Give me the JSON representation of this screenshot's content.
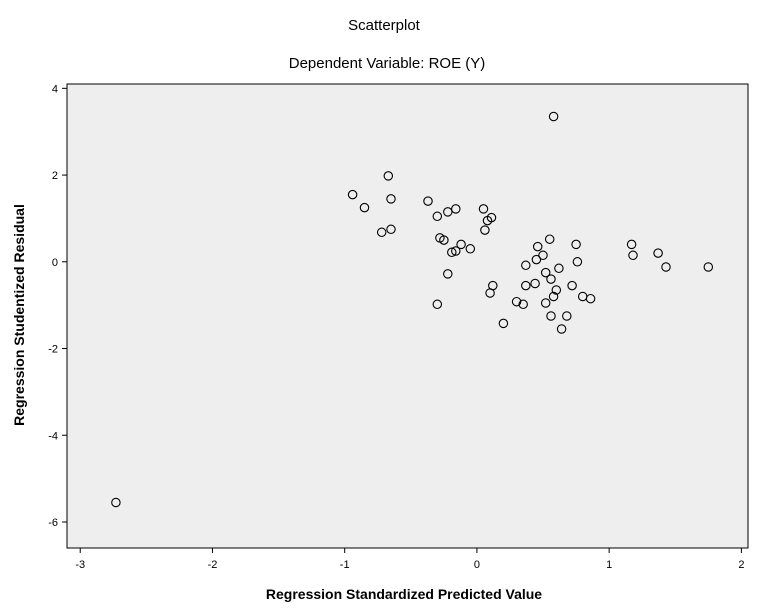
{
  "chart_data": {
    "type": "scatter",
    "title": "Scatterplot",
    "subtitle": "Dependent Variable: ROE (Y)",
    "xlabel": "Regression Standardized Predicted Value",
    "ylabel": "Regression Studentized Residual",
    "xlim": [
      -3.1,
      2.05
    ],
    "ylim": [
      -6.6,
      4.1
    ],
    "xticks": [
      "-3",
      "-2",
      "-1",
      "0",
      "1",
      "2"
    ],
    "yticks": [
      "4",
      "2",
      "0",
      "-2",
      "-4",
      "-6"
    ],
    "xtick_values": [
      -3,
      -2,
      -1,
      0,
      1,
      2
    ],
    "ytick_values": [
      4,
      2,
      0,
      -2,
      -4,
      -6
    ],
    "grid": false,
    "colors": {
      "plot_background": "#eeeeee",
      "marker": "#000000"
    },
    "points": [
      {
        "x": -2.73,
        "y": -5.55
      },
      {
        "x": -0.94,
        "y": 1.55
      },
      {
        "x": -0.67,
        "y": 1.98
      },
      {
        "x": -0.85,
        "y": 1.25
      },
      {
        "x": -0.65,
        "y": 1.45
      },
      {
        "x": -0.72,
        "y": 0.68
      },
      {
        "x": -0.65,
        "y": 0.75
      },
      {
        "x": -0.37,
        "y": 1.4
      },
      {
        "x": -0.3,
        "y": 1.05
      },
      {
        "x": -0.22,
        "y": 1.15
      },
      {
        "x": -0.16,
        "y": 1.22
      },
      {
        "x": -0.28,
        "y": 0.55
      },
      {
        "x": -0.25,
        "y": 0.5
      },
      {
        "x": -0.16,
        "y": 0.25
      },
      {
        "x": -0.12,
        "y": 0.4
      },
      {
        "x": -0.19,
        "y": 0.22
      },
      {
        "x": -0.05,
        "y": 0.3
      },
      {
        "x": 0.05,
        "y": 1.22
      },
      {
        "x": 0.11,
        "y": 1.02
      },
      {
        "x": 0.08,
        "y": 0.95
      },
      {
        "x": 0.06,
        "y": 0.73
      },
      {
        "x": -0.22,
        "y": -0.28
      },
      {
        "x": -0.3,
        "y": -0.98
      },
      {
        "x": 0.12,
        "y": -0.55
      },
      {
        "x": 0.1,
        "y": -0.72
      },
      {
        "x": 0.2,
        "y": -1.42
      },
      {
        "x": 0.3,
        "y": -0.92
      },
      {
        "x": 0.35,
        "y": -0.98
      },
      {
        "x": 0.37,
        "y": -0.55
      },
      {
        "x": 0.44,
        "y": -0.5
      },
      {
        "x": 0.37,
        "y": -0.08
      },
      {
        "x": 0.45,
        "y": 0.05
      },
      {
        "x": 0.46,
        "y": 0.35
      },
      {
        "x": 0.55,
        "y": 0.52
      },
      {
        "x": 0.58,
        "y": 3.35
      },
      {
        "x": 0.5,
        "y": 0.15
      },
      {
        "x": 0.52,
        "y": -0.25
      },
      {
        "x": 0.56,
        "y": -0.4
      },
      {
        "x": 0.6,
        "y": -0.65
      },
      {
        "x": 0.58,
        "y": -0.8
      },
      {
        "x": 0.56,
        "y": -1.25
      },
      {
        "x": 0.62,
        "y": -0.15
      },
      {
        "x": 0.64,
        "y": -1.55
      },
      {
        "x": 0.68,
        "y": -1.25
      },
      {
        "x": 0.72,
        "y": -0.55
      },
      {
        "x": 0.75,
        "y": 0.4
      },
      {
        "x": 0.76,
        "y": 0.0
      },
      {
        "x": 0.8,
        "y": -0.8
      },
      {
        "x": 0.86,
        "y": -0.85
      },
      {
        "x": 0.52,
        "y": -0.95
      },
      {
        "x": 1.17,
        "y": 0.4
      },
      {
        "x": 1.18,
        "y": 0.15
      },
      {
        "x": 1.37,
        "y": 0.2
      },
      {
        "x": 1.43,
        "y": -0.12
      },
      {
        "x": 1.75,
        "y": -0.12
      }
    ]
  }
}
